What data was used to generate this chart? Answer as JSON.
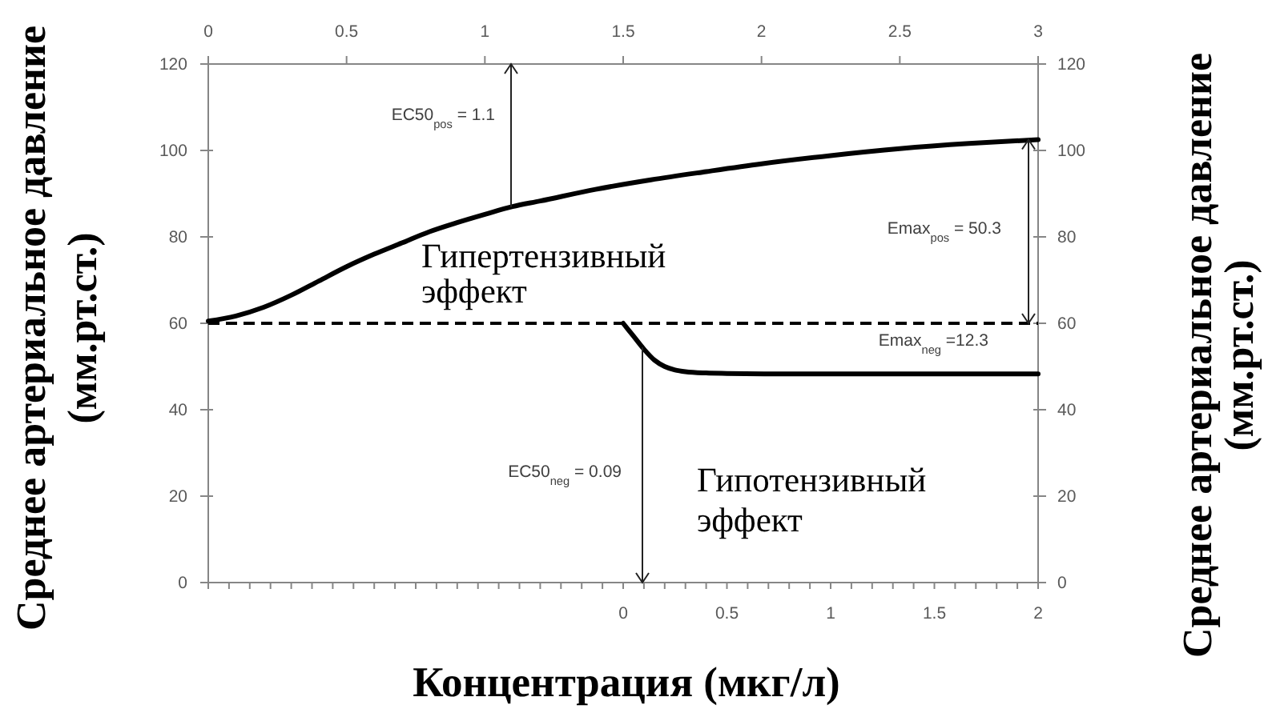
{
  "chart_data": {
    "type": "line",
    "xlabel": "Концентрация (мкг/л)",
    "ylabel": "Среднее артериальное давление\n(мм.рт.ст.)",
    "y2label": "Среднее артериальное давление\n(мм.рт.ст.)",
    "xlim": [
      -2,
      2
    ],
    "xticks": [
      {
        "value": -2,
        "label": null
      },
      {
        "value": -1.9,
        "label": null
      },
      {
        "value": -1.8,
        "label": null
      },
      {
        "value": -1.7,
        "label": null
      },
      {
        "value": -1.6,
        "label": null
      },
      {
        "value": -1.5,
        "label": null
      },
      {
        "value": -1.4,
        "label": null
      },
      {
        "value": -1.3,
        "label": null
      },
      {
        "value": -1.2,
        "label": null
      },
      {
        "value": -1.1,
        "label": null
      },
      {
        "value": -1,
        "label": null
      },
      {
        "value": -0.9,
        "label": null
      },
      {
        "value": -0.8,
        "label": null
      },
      {
        "value": -0.7,
        "label": null
      },
      {
        "value": -0.6,
        "label": null
      },
      {
        "value": -0.5,
        "label": null
      },
      {
        "value": -0.4,
        "label": null
      },
      {
        "value": -0.3,
        "label": null
      },
      {
        "value": -0.2,
        "label": null
      },
      {
        "value": -0.1,
        "label": null
      },
      0,
      {
        "value": 0.1,
        "label": null
      },
      {
        "value": 0.2,
        "label": null
      },
      {
        "value": 0.3,
        "label": null
      },
      {
        "value": 0.4,
        "label": null
      },
      0.5,
      {
        "value": 0.6,
        "label": null
      },
      {
        "value": 0.7,
        "label": null
      },
      {
        "value": 0.8,
        "label": null
      },
      {
        "value": 0.9,
        "label": null
      },
      1,
      {
        "value": 1.1,
        "label": null
      },
      {
        "value": 1.2,
        "label": null
      },
      {
        "value": 1.3,
        "label": null
      },
      {
        "value": 1.4,
        "label": null
      },
      1.5,
      {
        "value": 1.6,
        "label": null
      },
      {
        "value": 1.7,
        "label": null
      },
      {
        "value": 1.8,
        "label": null
      },
      {
        "value": 1.9,
        "label": null
      },
      2
    ],
    "x2lim": [
      0,
      3
    ],
    "x2ticks": [
      0,
      0.5,
      1,
      1.5,
      2,
      2.5,
      3
    ],
    "ylim": [
      0,
      120
    ],
    "yticks": [
      0,
      20,
      40,
      60,
      80,
      100,
      120
    ],
    "y2lim": [
      0,
      120
    ],
    "y2ticks": [
      0,
      20,
      40,
      60,
      80,
      100,
      120
    ],
    "series": [
      {
        "axis": "x2",
        "color": "#000000",
        "x": [
          0,
          0.1,
          0.2,
          0.3,
          0.4,
          0.5,
          0.6,
          0.7,
          0.8,
          0.9,
          1.0,
          1.1,
          1.2,
          1.4,
          1.6,
          1.8,
          2.0,
          2.25,
          2.5,
          2.75,
          3.0
        ],
        "values": [
          60.5,
          61.7,
          63.7,
          66.5,
          69.8,
          73.1,
          76,
          78.6,
          81.2,
          83.3,
          85.2,
          87,
          88.3,
          91,
          93.2,
          95.1,
          96.9,
          98.8,
          100.4,
          101.6,
          102.5
        ]
      },
      {
        "color": "#000000",
        "x": [
          0,
          0.05,
          0.1,
          0.15,
          0.2,
          0.25,
          0.3,
          0.4,
          0.5,
          0.75,
          1,
          1.5,
          2
        ],
        "values": [
          60,
          57,
          54,
          51.5,
          50,
          49.2,
          48.8,
          48.5,
          48.4,
          48.3,
          48.3,
          48.3,
          48.3
        ]
      }
    ],
    "ref_lines": [
      {
        "axis": "y",
        "value": 60,
        "color": "#000000",
        "line_style": "dashed"
      }
    ],
    "annotations": [
      "EC50$_{pos}$ = 1.1",
      "Emax$_{pos}$ = 50.3",
      "Гипертензивный\nэффект",
      "Emax$_{neg}$ =12.3",
      "EC50$_{neg}$ = 0.09",
      "Гипотензивный\nэффект"
    ]
  }
}
